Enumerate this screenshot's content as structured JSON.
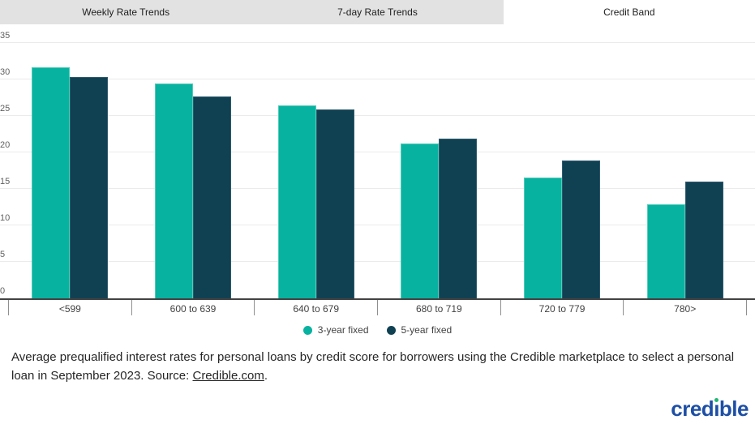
{
  "tabs": [
    {
      "label": "Weekly Rate Trends",
      "active": false
    },
    {
      "label": "7-day Rate Trends",
      "active": false
    },
    {
      "label": "Credit Band",
      "active": true
    }
  ],
  "chart_data": {
    "type": "bar",
    "title": "",
    "categories": [
      "<599",
      "600 to 639",
      "640 to 679",
      "680 to 719",
      "720 to 779",
      "780>"
    ],
    "series": [
      {
        "name": "3-year fixed",
        "color": "#08b2a0",
        "values": [
          31.7,
          29.4,
          26.4,
          21.2,
          16.5,
          12.9
        ]
      },
      {
        "name": "5-year fixed",
        "color": "#104152",
        "values": [
          30.3,
          27.7,
          25.9,
          21.9,
          18.9,
          16.0
        ]
      }
    ],
    "ylabel": "",
    "xlabel": "",
    "ylim": [
      0,
      37.5
    ],
    "yticks": [
      0,
      5,
      10,
      15,
      20,
      25,
      30,
      35
    ],
    "grid": true,
    "legend_position": "bottom"
  },
  "caption": {
    "text": "Average prequalified interest rates for personal loans by credit score for borrowers using the Credible marketplace to select a personal loan in September 2023. Source: ",
    "link_text": "Credible.com",
    "suffix": "."
  },
  "logo": {
    "text": "credible",
    "pre": "cred",
    "dotless_i": "ı",
    "post": "ble"
  },
  "colors": {
    "teal": "#08b2a0",
    "dark_teal": "#104152",
    "tab_bg": "#e2e2e2",
    "logo_blue": "#1d4fa5",
    "logo_dot": "#22b573"
  }
}
